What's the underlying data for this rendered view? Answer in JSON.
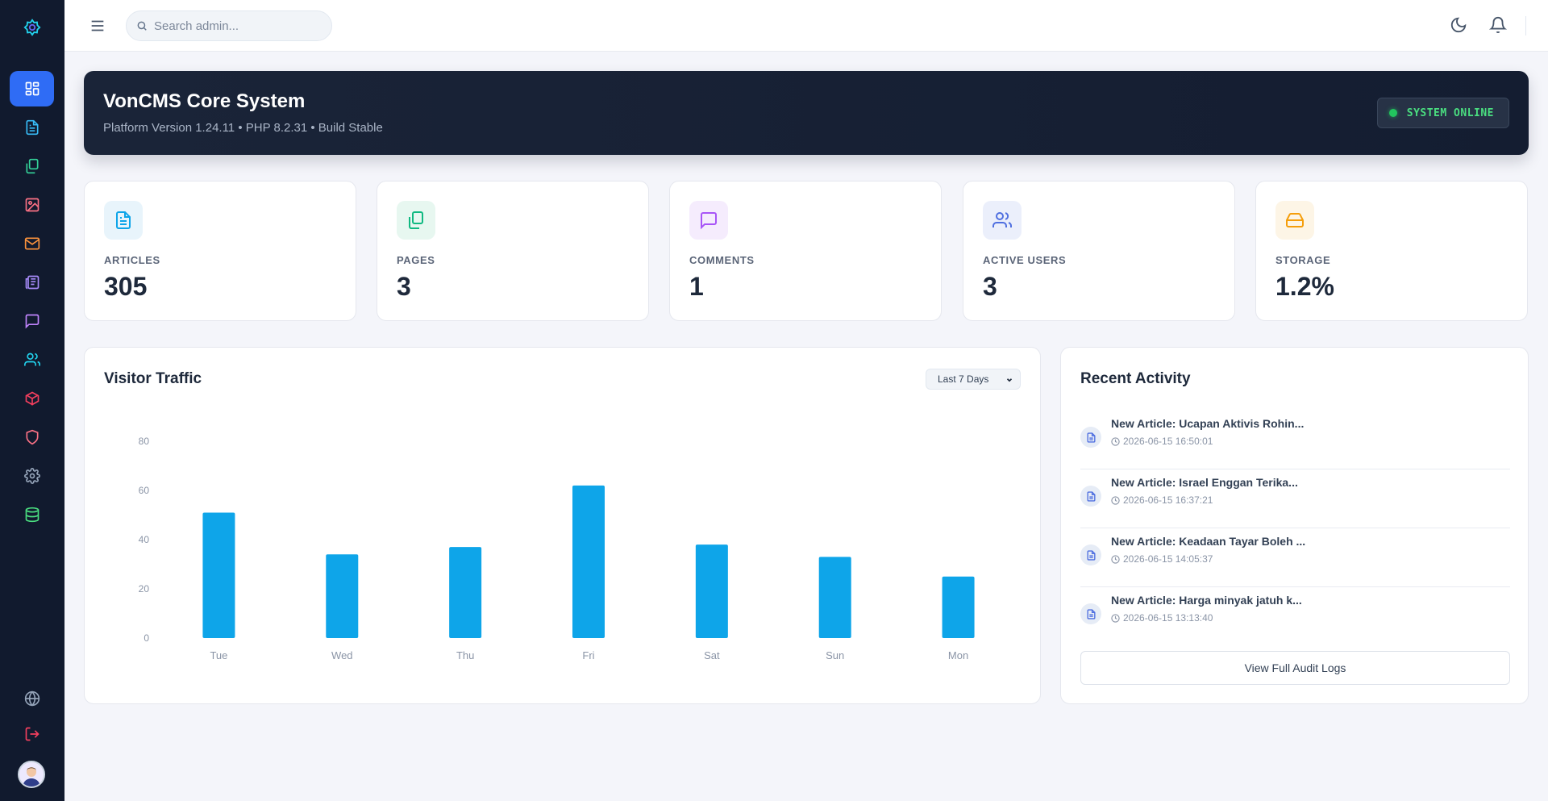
{
  "topbar": {
    "search_placeholder": "Search admin..."
  },
  "hero": {
    "title": "VonCMS Core System",
    "subtitle": "Platform Version 1.24.11 • PHP 8.2.31 • Build Stable",
    "status": "SYSTEM ONLINE"
  },
  "sidebar": {
    "items": [
      {
        "icon": "dashboard-icon",
        "color": "#ffffff"
      },
      {
        "icon": "articles-icon",
        "color": "#38bdf8"
      },
      {
        "icon": "pages-icon",
        "color": "#34d399"
      },
      {
        "icon": "media-icon",
        "color": "#fb7185"
      },
      {
        "icon": "mail-icon",
        "color": "#fb923c"
      },
      {
        "icon": "newspaper-icon",
        "color": "#a78bfa"
      },
      {
        "icon": "comments-icon",
        "color": "#c084fc"
      },
      {
        "icon": "users-icon",
        "color": "#22d3ee"
      },
      {
        "icon": "package-icon",
        "color": "#f43f5e"
      },
      {
        "icon": "shield-icon",
        "color": "#fb7185"
      },
      {
        "icon": "settings-icon",
        "color": "#94a3b8"
      },
      {
        "icon": "database-icon",
        "color": "#4ade80"
      }
    ]
  },
  "stats": [
    {
      "label": "ARTICLES",
      "value": "305",
      "icon": "article-icon",
      "color": "#0ea5e9",
      "bg": "#e8f4fb"
    },
    {
      "label": "PAGES",
      "value": "3",
      "icon": "pages-icon",
      "color": "#10b981",
      "bg": "#e7f7f0"
    },
    {
      "label": "COMMENTS",
      "value": "1",
      "icon": "comment-icon",
      "color": "#a855f7",
      "bg": "#f5ecfd"
    },
    {
      "label": "ACTIVE USERS",
      "value": "3",
      "icon": "users-icon",
      "color": "#4f6fe0",
      "bg": "#ebeffb"
    },
    {
      "label": "STORAGE",
      "value": "1.2%",
      "icon": "storage-icon",
      "color": "#f59e0b",
      "bg": "#fdf5e6"
    }
  ],
  "traffic": {
    "title": "Visitor Traffic",
    "range": "Last 7 Days"
  },
  "chart_data": {
    "type": "bar",
    "categories": [
      "Tue",
      "Wed",
      "Thu",
      "Fri",
      "Sat",
      "Sun",
      "Mon"
    ],
    "values": [
      51,
      34,
      37,
      62,
      38,
      33,
      25
    ],
    "ylim": [
      0,
      80
    ],
    "yticks": [
      0,
      20,
      40,
      60,
      80
    ],
    "color": "#0ea5e9",
    "grid": false
  },
  "activity": {
    "title": "Recent Activity",
    "items": [
      {
        "title": "New Article: Ucapan Aktivis Rohin...",
        "time": "2026-06-15 16:50:01"
      },
      {
        "title": "New Article: Israel Enggan Terika...",
        "time": "2026-06-15 16:37:21"
      },
      {
        "title": "New Article: Keadaan Tayar Boleh ...",
        "time": "2026-06-15 14:05:37"
      },
      {
        "title": "New Article: Harga minyak jatuh k...",
        "time": "2026-06-15 13:13:40"
      }
    ],
    "button": "View Full Audit Logs"
  }
}
